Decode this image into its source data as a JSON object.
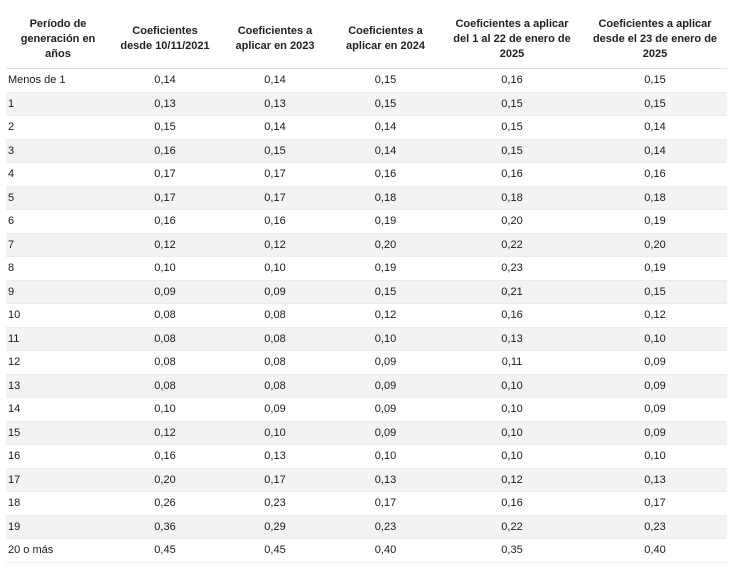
{
  "table": {
    "headers": [
      "Período de generación en años",
      "Coeficientes desde 10/11/2021",
      "Coeficientes a aplicar en 2023",
      "Coeficientes a aplicar en 2024",
      "Coeficientes a aplicar del 1 al 22 de enero de 2025",
      "Coeficientes a aplicar desde el 23 de enero de 2025"
    ],
    "rows": [
      [
        "Menos de 1",
        "0,14",
        "0,14",
        "0,15",
        "0,16",
        "0,15"
      ],
      [
        "1",
        "0,13",
        "0,13",
        "0,15",
        "0,15",
        "0,15"
      ],
      [
        "2",
        "0,15",
        "0,14",
        "0,14",
        "0,15",
        "0,14"
      ],
      [
        "3",
        "0,16",
        "0,15",
        "0,14",
        "0,15",
        "0,14"
      ],
      [
        "4",
        "0,17",
        "0,17",
        "0,16",
        "0,16",
        "0,16"
      ],
      [
        "5",
        "0,17",
        "0,17",
        "0,18",
        "0,18",
        "0,18"
      ],
      [
        "6",
        "0,16",
        "0,16",
        "0,19",
        "0,20",
        "0,19"
      ],
      [
        "7",
        "0,12",
        "0,12",
        "0,20",
        "0,22",
        "0,20"
      ],
      [
        "8",
        "0,10",
        "0,10",
        "0,19",
        "0,23",
        "0,19"
      ],
      [
        "9",
        "0,09",
        "0,09",
        "0,15",
        "0,21",
        "0,15"
      ],
      [
        "10",
        "0,08",
        "0,08",
        "0,12",
        "0,16",
        "0,12"
      ],
      [
        "11",
        "0,08",
        "0,08",
        "0,10",
        "0,13",
        "0,10"
      ],
      [
        "12",
        "0,08",
        "0,08",
        "0,09",
        "0,11",
        "0,09"
      ],
      [
        "13",
        "0,08",
        "0,08",
        "0,09",
        "0,10",
        "0,09"
      ],
      [
        "14",
        "0,10",
        "0,09",
        "0,09",
        "0,10",
        "0,09"
      ],
      [
        "15",
        "0,12",
        "0,10",
        "0,09",
        "0,10",
        "0,09"
      ],
      [
        "16",
        "0,16",
        "0,13",
        "0,10",
        "0,10",
        "0,10"
      ],
      [
        "17",
        "0,20",
        "0,17",
        "0,13",
        "0,12",
        "0,13"
      ],
      [
        "18",
        "0,26",
        "0,23",
        "0,17",
        "0,16",
        "0,17"
      ],
      [
        "19",
        "0,36",
        "0,29",
        "0,23",
        "0,22",
        "0,23"
      ],
      [
        "20 o más",
        "0,45",
        "0,45",
        "0,40",
        "0,35",
        "0,40"
      ]
    ]
  }
}
